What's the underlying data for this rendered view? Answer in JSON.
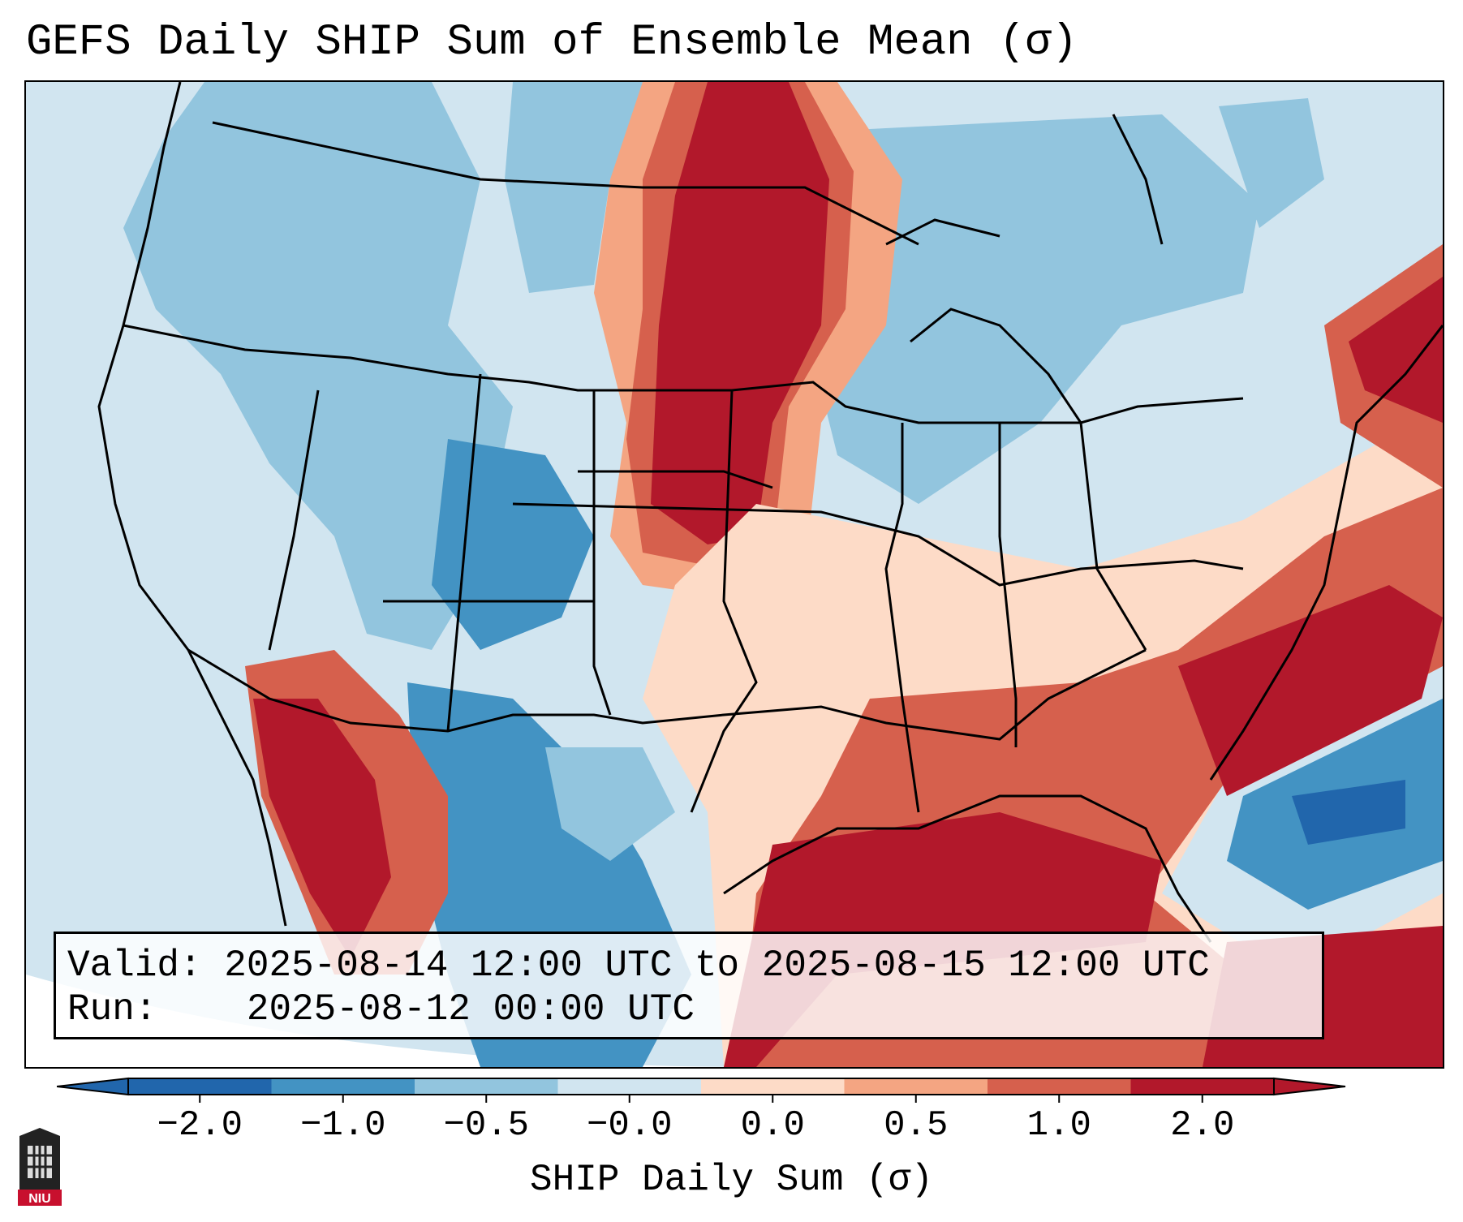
{
  "title": "GEFS Daily SHIP Sum of Ensemble Mean (σ)",
  "info": {
    "valid_label": "Valid:",
    "valid_value": "2025-08-14 12:00 UTC to 2025-08-15 12:00 UTC",
    "run_label": "Run:",
    "run_value": "2025-08-12 00:00 UTC"
  },
  "colorbar": {
    "label": "SHIP Daily Sum (σ)",
    "ticks": [
      "−2.0",
      "−1.0",
      "−0.5",
      "−0.0",
      "0.0",
      "0.5",
      "1.0",
      "2.0"
    ],
    "colors": [
      "#2166ac",
      "#4393c3",
      "#92c5de",
      "#d1e5f0",
      "#fddbc7",
      "#f4a582",
      "#d6604d",
      "#b2182b"
    ],
    "extend": "both"
  },
  "logo": {
    "text": "NIU",
    "icon": "niu-tower-logo-icon"
  }
}
